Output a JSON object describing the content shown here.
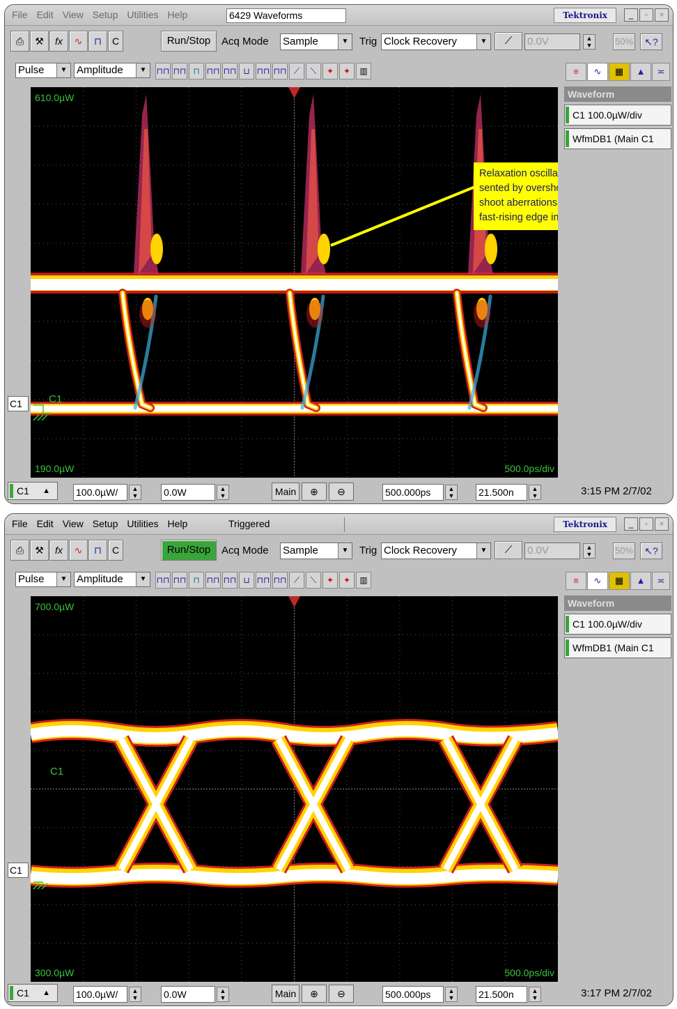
{
  "colors": {
    "accent_green": "#3aa53a",
    "screen_bg": "#000000",
    "trace_green": "#3ac23a",
    "trigger_red": "#c02828",
    "callout_yellow": "#ffff00"
  },
  "screens": [
    {
      "menu": [
        "File",
        "Edit",
        "View",
        "Setup",
        "Utilities",
        "Help"
      ],
      "title": "6429 Waveforms",
      "brand": "Tektronix",
      "toolbar": {
        "icons": [
          "printer-icon",
          "tools-icon",
          "math-fx-icon",
          "waveform-icon",
          "pulse-icon"
        ],
        "c_label": "C",
        "run_stop": "Run/Stop",
        "acq_mode_label": "Acq Mode",
        "acq_mode_value": "Sample",
        "trig_label": "Trig",
        "trig_value": "Clock Recovery",
        "trig_level": "0.0V",
        "zoom": "50%"
      },
      "measure": {
        "category": "Pulse",
        "measurement": "Amplitude"
      },
      "waveform_panel": {
        "header": "Waveform",
        "items": [
          "C1 100.0µW/div",
          "WfmDB1 (Main C1"
        ]
      },
      "graticule": {
        "top_label": "610.0µW",
        "bottom_label": "190.0µW",
        "timebase_label": "500.0ps/div",
        "c1_marker": "C1",
        "trace_label": "C1"
      },
      "callout": [
        "Relaxation oscillations are repre-",
        "sented by overshoot and under-",
        "shoot aberrations following a",
        "fast-rising edge in the eye pattern"
      ],
      "status": {
        "channel": "C1",
        "scale": "100.0µW/",
        "offset": "0.0W",
        "main": "Main",
        "horiz_scale": "500.000ps",
        "horiz_pos": "21.500n",
        "clock": "3:15 PM 2/7/02"
      }
    },
    {
      "menu": [
        "File",
        "Edit",
        "View",
        "Setup",
        "Utilities",
        "Help"
      ],
      "title": "Triggered",
      "brand": "Tektronix",
      "toolbar": {
        "icons": [
          "printer-icon",
          "tools-icon",
          "math-fx-icon",
          "waveform-icon",
          "pulse-icon"
        ],
        "c_label": "C",
        "run_stop": "Run/Stop",
        "acq_mode_label": "Acq Mode",
        "acq_mode_value": "Sample",
        "trig_label": "Trig",
        "trig_value": "Clock Recovery",
        "trig_level": "0.0V",
        "zoom": "50%"
      },
      "measure": {
        "category": "Pulse",
        "measurement": "Amplitude"
      },
      "waveform_panel": {
        "header": "Waveform",
        "items": [
          "C1 100.0µW/div",
          "WfmDB1 (Main C1"
        ]
      },
      "graticule": {
        "top_label": "700.0µW",
        "bottom_label": "300.0µW",
        "timebase_label": "500.0ps/div",
        "c1_marker": "C1",
        "trace_label": "C1"
      },
      "status": {
        "channel": "C1",
        "scale": "100.0µW/",
        "offset": "0.0W",
        "main": "Main",
        "horiz_scale": "500.000ps",
        "horiz_pos": "21.500n",
        "clock": "3:17 PM 2/7/02"
      }
    }
  ]
}
